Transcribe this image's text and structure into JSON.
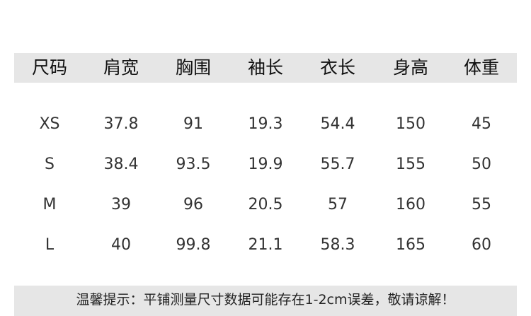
{
  "table": {
    "headers": [
      "尺码",
      "肩宽",
      "胸围",
      "袖长",
      "衣长",
      "身高",
      "体重"
    ],
    "rows": [
      [
        "XS",
        "37.8",
        "91",
        "19.3",
        "54.4",
        "150",
        "45"
      ],
      [
        "S",
        "38.4",
        "93.5",
        "19.9",
        "55.7",
        "155",
        "50"
      ],
      [
        "M",
        "39",
        "96",
        "20.5",
        "57",
        "160",
        "55"
      ],
      [
        "L",
        "40",
        "99.8",
        "21.1",
        "58.3",
        "165",
        "60"
      ]
    ]
  },
  "footer": {
    "note": "温馨提示：平铺测量尺寸数据可能存在1-2cm误差，敬请谅解！"
  },
  "colors": {
    "band_background": "#e6e6e6"
  }
}
